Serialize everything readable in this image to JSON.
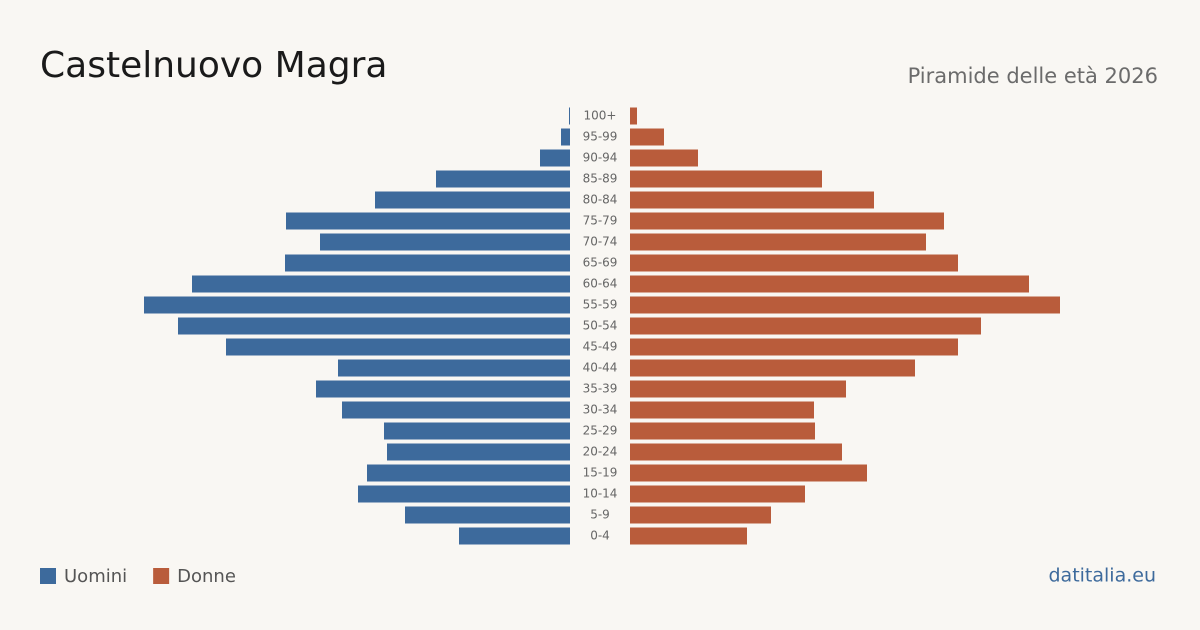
{
  "chart_data": {
    "type": "pyramid",
    "title": "Castelnuovo Magra",
    "subtitle": "Piramide delle età 2026",
    "categories": [
      "100+",
      "95-99",
      "90-94",
      "85-89",
      "80-84",
      "75-79",
      "70-74",
      "65-69",
      "60-64",
      "55-59",
      "50-54",
      "45-49",
      "40-44",
      "35-39",
      "30-34",
      "25-29",
      "20-24",
      "15-19",
      "10-14",
      "5-9",
      "0-4"
    ],
    "series": [
      {
        "name": "Uomini",
        "color": "#3d6a9c",
        "values": [
          1,
          9,
          30,
          134,
          195,
          284,
          250,
          285,
          378,
          426,
          392,
          344,
          232,
          254,
          228,
          186,
          183,
          203,
          212,
          165,
          111
        ]
      },
      {
        "name": "Donne",
        "color": "#b95c3b",
        "values": [
          7,
          34,
          68,
          192,
          244,
          314,
          296,
          328,
          399,
          430,
          351,
          328,
          285,
          216,
          184,
          185,
          212,
          237,
          175,
          141,
          117
        ]
      }
    ],
    "legend": "bottom-left",
    "source": "datitalia.eu"
  }
}
